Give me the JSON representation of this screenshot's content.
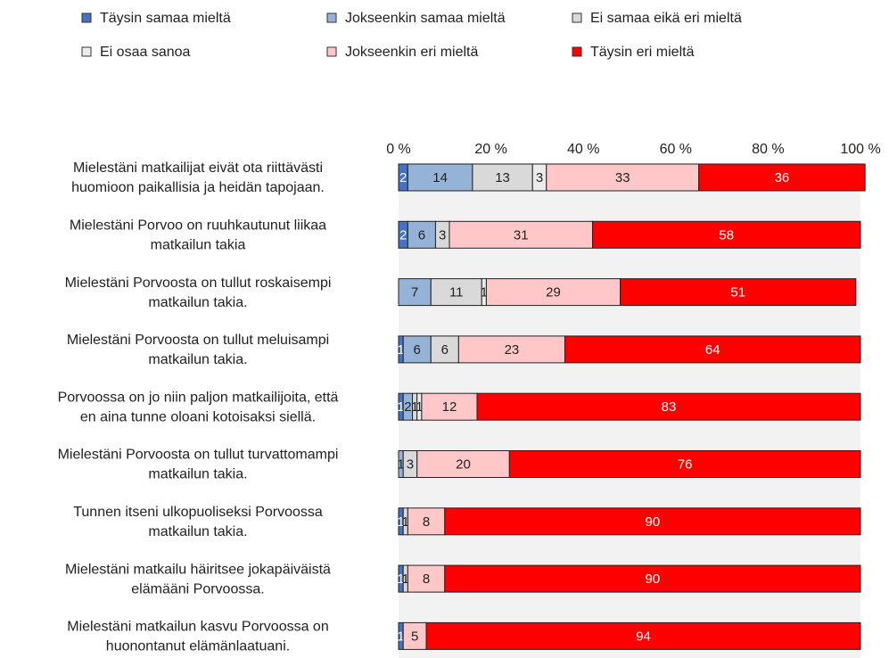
{
  "chart_data": {
    "type": "stacked-bar-horizontal",
    "categories": [
      [
        "Mielestäni matkailijat eivät ota riittävästi",
        "huomioon paikallisia ja heidän tapojaan."
      ],
      [
        "Mielestäni Porvoo on ruuhkautunut liikaa",
        "matkailun takia"
      ],
      [
        "Mielestäni Porvoosta on tullut roskaisempi",
        "matkailun takia."
      ],
      [
        "Mielestäni Porvoosta on tullut meluisampi",
        "matkailun takia."
      ],
      [
        "Porvoossa on jo niin paljon matkailijoita, että",
        "en aina tunne oloani kotoisaksi siellä."
      ],
      [
        "Mielestäni Porvoosta on tullut turvattomampi",
        "matkailun takia."
      ],
      [
        "Tunnen itseni ulkopuoliseksi Porvoossa",
        "matkailun takia."
      ],
      [
        "Mielestäni matkailu häiritsee jokapäiväistä",
        "elämääni Porvoossa."
      ],
      [
        "Mielestäni matkailun kasvu Porvoossa on",
        "huonontanut elämänlaatuani."
      ]
    ],
    "series": [
      {
        "name": "Täysin samaa mieltä",
        "color": "#4472c4",
        "values": [
          2,
          2,
          0,
          1,
          1,
          0,
          1,
          1,
          1
        ]
      },
      {
        "name": "Jokseenkin samaa mieltä",
        "color": "#95b3d7",
        "values": [
          14,
          6,
          7,
          6,
          2,
          1,
          0,
          0,
          0
        ]
      },
      {
        "name": "Ei samaa eikä eri mieltä",
        "color": "#d9d9d9",
        "values": [
          13,
          3,
          11,
          6,
          1,
          3,
          1,
          1,
          0
        ]
      },
      {
        "name": "Ei osaa sanoa",
        "color": "#ececec",
        "values": [
          3,
          0,
          1,
          0,
          1,
          0,
          0,
          0,
          0
        ]
      },
      {
        "name": "Jokseenkin eri mieltä",
        "color": "#ffc7c7",
        "values": [
          33,
          31,
          29,
          23,
          12,
          20,
          8,
          8,
          5
        ]
      },
      {
        "name": "Täysin eri mieltä",
        "color": "#ff0000",
        "values": [
          36,
          58,
          51,
          64,
          83,
          76,
          90,
          90,
          94
        ]
      }
    ],
    "xlim": [
      0,
      100
    ],
    "xticks": [
      {
        "value": 0,
        "label": "0 %"
      },
      {
        "value": 20,
        "label": "20 %"
      },
      {
        "value": 40,
        "label": "40 %"
      },
      {
        "value": 60,
        "label": "60 %"
      },
      {
        "value": 80,
        "label": "80 %"
      },
      {
        "value": 100,
        "label": "100 %"
      }
    ]
  }
}
